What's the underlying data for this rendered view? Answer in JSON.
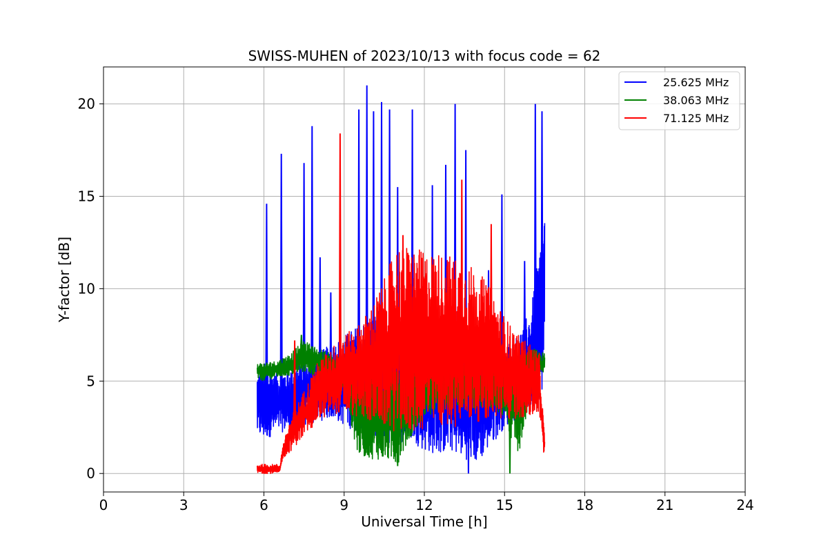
{
  "chart_data": {
    "type": "line",
    "title": "SWISS-MUHEN of 2023/10/13 with focus code = 62",
    "xlabel": "Universal Time [h]",
    "ylabel": "Y-factor [dB]",
    "xlim": [
      0,
      24
    ],
    "ylim": [
      -1,
      22
    ],
    "xticks": [
      0,
      3,
      6,
      9,
      12,
      15,
      18,
      21,
      24
    ],
    "yticks": [
      0,
      5,
      10,
      15,
      20
    ],
    "grid": true,
    "legend_position": "top-right",
    "series": [
      {
        "name": "25.625 MHz",
        "color": "#0000ff",
        "envelope": {
          "x": [
            5.75,
            6.0,
            6.5,
            7.0,
            7.5,
            8.0,
            8.5,
            9.0,
            9.5,
            10.0,
            10.5,
            11.0,
            11.5,
            12.0,
            12.5,
            13.0,
            13.5,
            14.0,
            14.5,
            15.0,
            15.5,
            16.0,
            16.3,
            16.5
          ],
          "low": [
            2.0,
            1.8,
            2.2,
            2.3,
            2.5,
            2.8,
            3.0,
            2.6,
            2.2,
            1.8,
            1.5,
            1.5,
            1.8,
            1.2,
            1.0,
            1.2,
            0.8,
            0.5,
            1.5,
            2.5,
            3.0,
            3.5,
            4.0,
            5.0
          ],
          "high": [
            5.5,
            6.0,
            5.5,
            5.8,
            6.0,
            6.5,
            7.0,
            7.5,
            8.0,
            8.5,
            9.0,
            8.0,
            8.0,
            7.5,
            7.5,
            7.5,
            7.0,
            7.5,
            7.5,
            7.0,
            7.5,
            9.0,
            12.0,
            14.5
          ]
        },
        "spikes": [
          {
            "x": 6.1,
            "y": 14.6
          },
          {
            "x": 6.65,
            "y": 17.3
          },
          {
            "x": 7.5,
            "y": 16.8
          },
          {
            "x": 7.8,
            "y": 18.8
          },
          {
            "x": 8.1,
            "y": 11.7
          },
          {
            "x": 8.5,
            "y": 9.8
          },
          {
            "x": 9.55,
            "y": 19.7
          },
          {
            "x": 9.85,
            "y": 21.0
          },
          {
            "x": 10.1,
            "y": 19.6
          },
          {
            "x": 10.4,
            "y": 20.1
          },
          {
            "x": 10.7,
            "y": 19.7
          },
          {
            "x": 11.0,
            "y": 15.5
          },
          {
            "x": 11.55,
            "y": 19.7
          },
          {
            "x": 12.3,
            "y": 15.6
          },
          {
            "x": 12.8,
            "y": 16.7
          },
          {
            "x": 13.15,
            "y": 20.0
          },
          {
            "x": 13.55,
            "y": 17.5
          },
          {
            "x": 14.4,
            "y": 11.0
          },
          {
            "x": 14.9,
            "y": 15.1
          },
          {
            "x": 15.75,
            "y": 11.5
          },
          {
            "x": 16.15,
            "y": 20.0
          },
          {
            "x": 16.4,
            "y": 19.6
          }
        ],
        "dips": [
          {
            "x": 13.65,
            "y": 0.0
          }
        ]
      },
      {
        "name": "38.063 MHz",
        "color": "#008000",
        "envelope": {
          "x": [
            5.75,
            6.0,
            6.5,
            7.0,
            7.5,
            8.0,
            8.5,
            9.0,
            9.5,
            10.0,
            10.5,
            11.0,
            11.5,
            12.0,
            13.0,
            14.0,
            14.5,
            15.0,
            15.5,
            16.0,
            16.5
          ],
          "low": [
            5.1,
            5.0,
            5.2,
            5.3,
            5.5,
            5.2,
            5.0,
            4.5,
            1.0,
            0.8,
            0.7,
            0.5,
            2.0,
            3.0,
            3.5,
            3.5,
            3.5,
            3.0,
            0.8,
            4.5,
            5.5
          ],
          "high": [
            6.0,
            6.0,
            6.1,
            6.5,
            7.2,
            6.8,
            6.5,
            6.2,
            5.8,
            5.5,
            5.5,
            5.5,
            5.8,
            6.0,
            6.0,
            6.0,
            6.2,
            6.2,
            6.3,
            6.8,
            6.5
          ]
        },
        "spikes": [
          {
            "x": 7.4,
            "y": 7.5
          }
        ],
        "dips": [
          {
            "x": 11.0,
            "y": 0.4
          },
          {
            "x": 15.2,
            "y": 0.0
          }
        ]
      },
      {
        "name": "71.125 MHz",
        "color": "#ff0000",
        "envelope": {
          "x": [
            5.75,
            6.0,
            6.6,
            6.7,
            7.0,
            7.5,
            8.0,
            8.5,
            9.0,
            9.5,
            10.0,
            10.5,
            11.0,
            11.5,
            12.0,
            12.5,
            13.0,
            13.5,
            14.0,
            14.5,
            15.0,
            15.5,
            16.0,
            16.3,
            16.45,
            16.5
          ],
          "low": [
            0.0,
            0.0,
            0.0,
            0.8,
            1.2,
            2.0,
            2.8,
            3.2,
            3.3,
            3.0,
            2.8,
            2.5,
            2.2,
            2.2,
            2.3,
            2.5,
            2.5,
            2.6,
            2.8,
            3.0,
            2.8,
            3.0,
            3.0,
            3.2,
            1.0,
            1.2
          ],
          "high": [
            0.5,
            0.5,
            0.5,
            1.5,
            3.0,
            4.5,
            6.0,
            6.8,
            7.5,
            8.0,
            9.0,
            10.5,
            12.5,
            12.3,
            12.0,
            12.0,
            11.8,
            11.5,
            11.0,
            10.0,
            8.5,
            7.5,
            7.0,
            6.5,
            3.0,
            2.0
          ]
        },
        "spikes": [
          {
            "x": 7.15,
            "y": 7.2
          },
          {
            "x": 8.85,
            "y": 18.4
          },
          {
            "x": 13.4,
            "y": 15.9
          },
          {
            "x": 14.5,
            "y": 13.5
          },
          {
            "x": 11.2,
            "y": 12.9
          }
        ],
        "dips": []
      }
    ]
  }
}
